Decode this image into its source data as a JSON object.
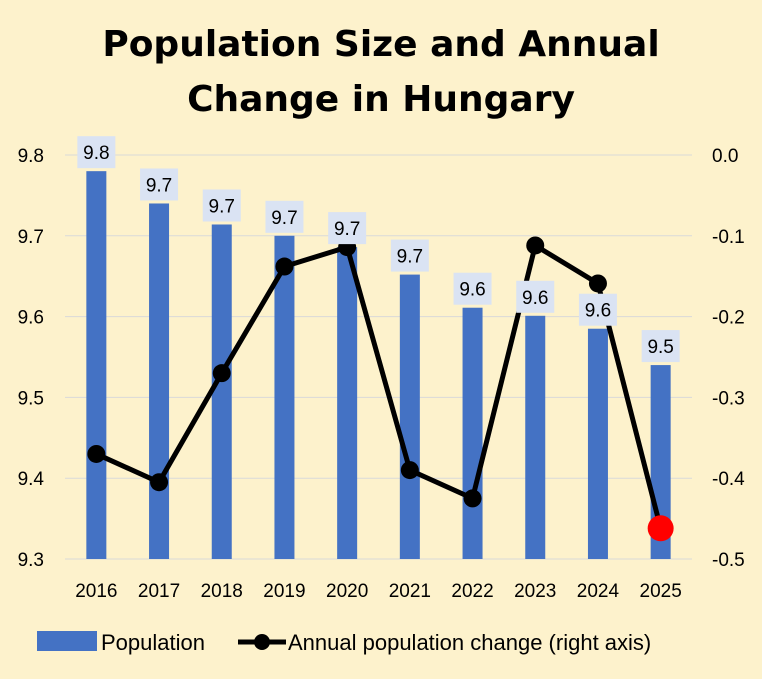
{
  "chart_data": {
    "type": "bar+line",
    "title": [
      "Population Size and Annual",
      "Change in Hungary"
    ],
    "categories": [
      "2016",
      "2017",
      "2018",
      "2019",
      "2020",
      "2021",
      "2022",
      "2023",
      "2024",
      "2025"
    ],
    "series": [
      {
        "name": "Population",
        "type": "bar",
        "axis": "left",
        "values": [
          9.78,
          9.74,
          9.714,
          9.7,
          9.686,
          9.652,
          9.611,
          9.601,
          9.585,
          9.54
        ],
        "labels": [
          "9.8",
          "9.7",
          "9.7",
          "9.7",
          "9.7",
          "9.7",
          "9.6",
          "9.6",
          "9.6",
          "9.5"
        ],
        "color": "#4472c4"
      },
      {
        "name": "Annual population change (right axis)",
        "type": "line",
        "axis": "right",
        "values": [
          -0.37,
          -0.405,
          -0.27,
          -0.138,
          -0.114,
          -0.39,
          -0.425,
          -0.112,
          -0.159,
          -0.462
        ],
        "color": "#000000",
        "highlight_last_color": "#ff0000"
      }
    ],
    "y_left": {
      "min": 9.3,
      "max": 9.8,
      "ticks": [
        "9.3",
        "9.4",
        "9.5",
        "9.6",
        "9.7",
        "9.8"
      ]
    },
    "y_right": {
      "min": -0.5,
      "max": 0.0,
      "ticks": [
        "-0.5",
        "-0.4",
        "-0.3",
        "-0.2",
        "-0.1",
        "0.0"
      ]
    },
    "grid": true,
    "legend_position": "bottom",
    "colors": {
      "background": "#fdf2cc",
      "gridline": "#d9d9d9",
      "label_box": "#dae3f3"
    }
  }
}
